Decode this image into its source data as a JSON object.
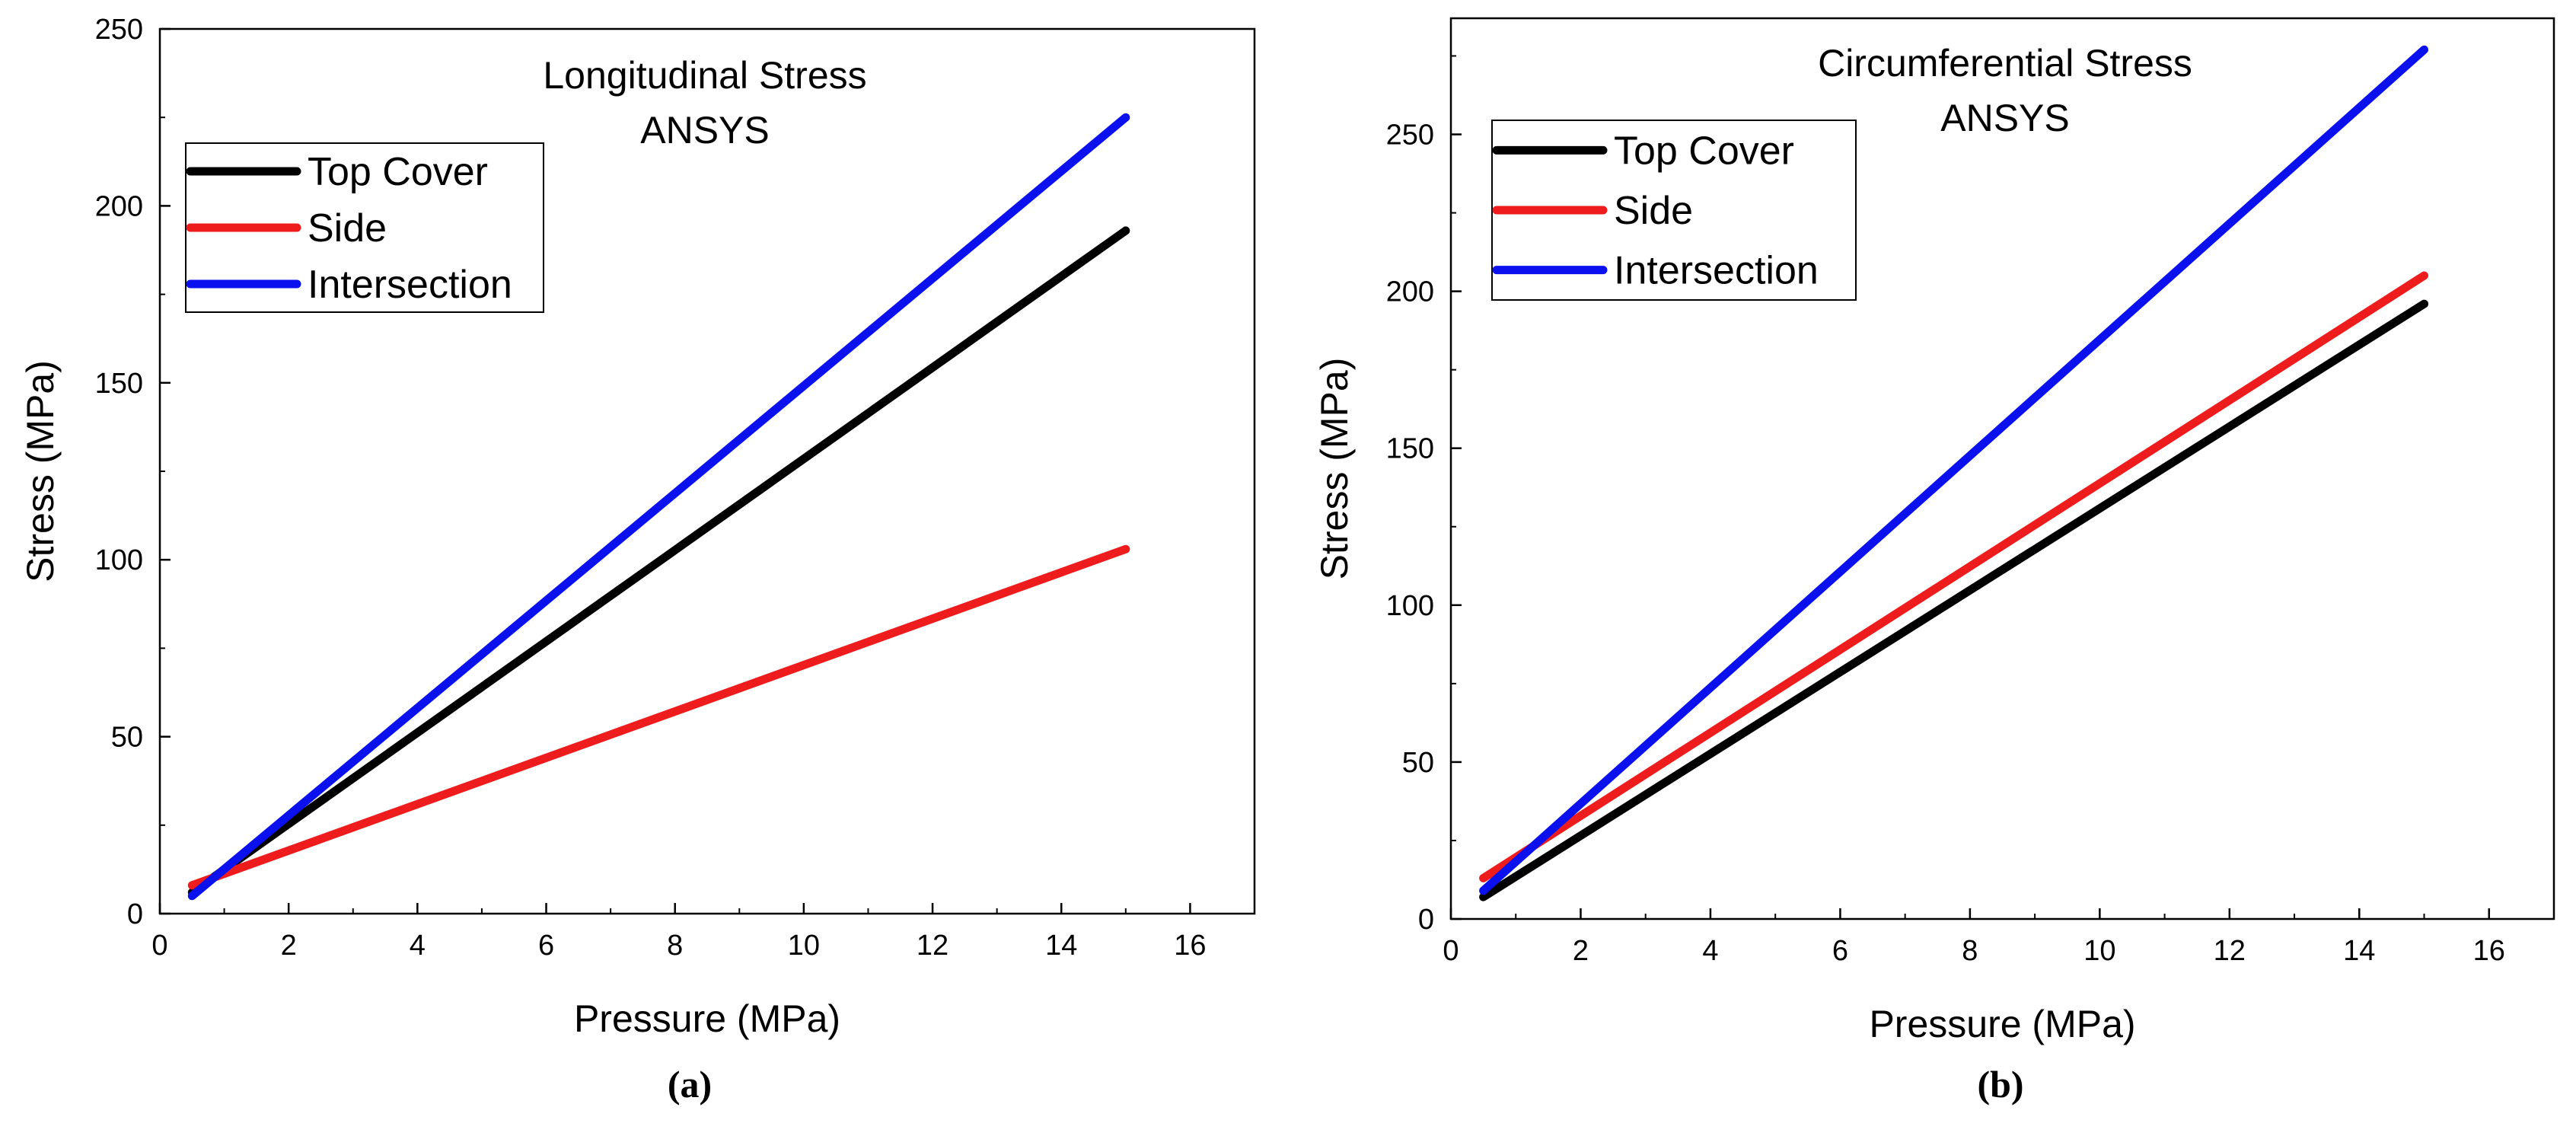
{
  "chart_data": [
    {
      "type": "line",
      "title": [
        "Longitudinal Stress",
        "ANSYS"
      ],
      "xlabel": "Pressure (MPa)",
      "ylabel": "Stress (MPa)",
      "xlim": [
        0,
        17
      ],
      "ylim": [
        0,
        250
      ],
      "xticks": [
        0,
        2,
        4,
        6,
        8,
        10,
        12,
        14,
        16
      ],
      "yticks": [
        0,
        50,
        100,
        150,
        200,
        250
      ],
      "grid": false,
      "legend_position": "top-left",
      "series": [
        {
          "name": "Top Cover",
          "color": "#000000",
          "x": [
            0.5,
            15
          ],
          "y": [
            6,
            193
          ]
        },
        {
          "name": "Side",
          "color": "#ee1c1c",
          "x": [
            0.5,
            15
          ],
          "y": [
            8,
            103
          ]
        },
        {
          "name": "Intersection",
          "color": "#0a10ee",
          "x": [
            0.5,
            15
          ],
          "y": [
            5,
            225
          ]
        }
      ],
      "caption": "(a)"
    },
    {
      "type": "line",
      "title": [
        "Circumferential Stress",
        "ANSYS"
      ],
      "xlabel": "Pressure (MPa)",
      "ylabel": "Stress (MPa)",
      "xlim": [
        0,
        17
      ],
      "ylim": [
        0,
        287
      ],
      "xticks": [
        0,
        2,
        4,
        6,
        8,
        10,
        12,
        14,
        16
      ],
      "yticks": [
        0,
        50,
        100,
        150,
        200,
        250
      ],
      "grid": false,
      "legend_position": "top-left",
      "series": [
        {
          "name": "Top Cover",
          "color": "#000000",
          "x": [
            0.5,
            15
          ],
          "y": [
            7,
            196
          ]
        },
        {
          "name": "Side",
          "color": "#ee1c1c",
          "x": [
            0.5,
            15
          ],
          "y": [
            13,
            205
          ]
        },
        {
          "name": "Intersection",
          "color": "#0a10ee",
          "x": [
            0.5,
            15
          ],
          "y": [
            9,
            277
          ]
        }
      ],
      "caption": "(b)"
    }
  ]
}
